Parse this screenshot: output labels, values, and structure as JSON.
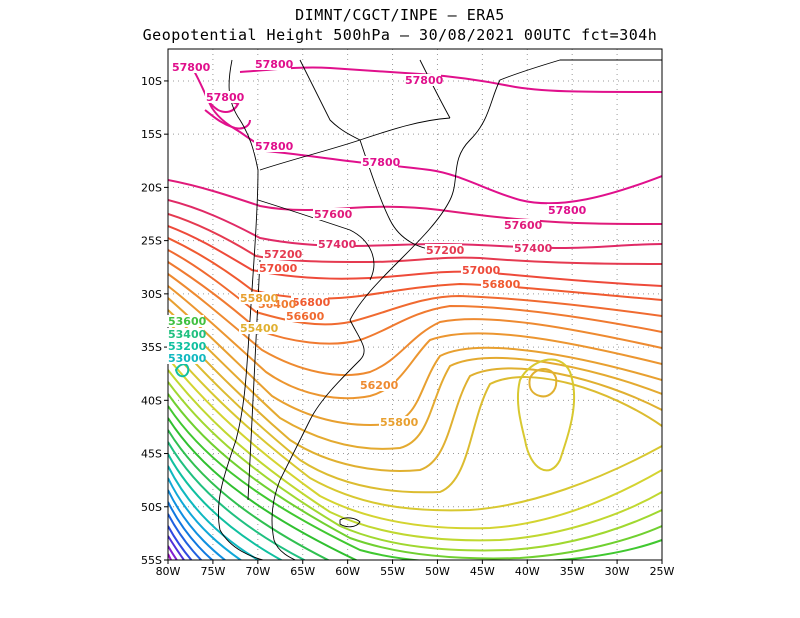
{
  "title": {
    "line1": "DIMNT/CGCT/INPE –  ERA5",
    "line2": "Geopotential Height 500hPa –  30/08/2021 00UTC fct=304h"
  },
  "map": {
    "lon_range": [
      -80,
      -25
    ],
    "lat_range": [
      -55,
      -7
    ],
    "grid": "dotted",
    "x_tick_labels": [
      "80W",
      "75W",
      "70W",
      "65W",
      "60W",
      "55W",
      "50W",
      "45W",
      "40W",
      "35W",
      "30W",
      "25W"
    ],
    "y_tick_labels": [
      "10S",
      "15S",
      "20S",
      "25S",
      "30S",
      "35S",
      "40S",
      "45S",
      "50S",
      "55S"
    ],
    "y_tick_values": [
      -10,
      -15,
      -20,
      -25,
      -30,
      -35,
      -40,
      -45,
      -50,
      -55
    ]
  },
  "contour_labels": [
    {
      "text": "57800",
      "color": "#e0108c"
    },
    {
      "text": "57800",
      "color": "#e0108c"
    },
    {
      "text": "57800",
      "color": "#e0108c"
    },
    {
      "text": "57800",
      "color": "#e0108c"
    },
    {
      "text": "57800",
      "color": "#e0108c"
    },
    {
      "text": "57800",
      "color": "#e0108c"
    },
    {
      "text": "57800",
      "color": "#e0108c"
    },
    {
      "text": "57600",
      "color": "#e01a7a"
    },
    {
      "text": "57600",
      "color": "#e01a7a"
    },
    {
      "text": "57400",
      "color": "#e02a66"
    },
    {
      "text": "57400",
      "color": "#e02a66"
    },
    {
      "text": "57200",
      "color": "#e53a50"
    },
    {
      "text": "57200",
      "color": "#e53a50"
    },
    {
      "text": "57000",
      "color": "#ee4a3a"
    },
    {
      "text": "57000",
      "color": "#ee4a3a"
    },
    {
      "text": "56800",
      "color": "#f05a30"
    },
    {
      "text": "56800",
      "color": "#f05a30"
    },
    {
      "text": "56600",
      "color": "#f06a30"
    },
    {
      "text": "56400",
      "color": "#f07a30"
    },
    {
      "text": "56200",
      "color": "#ee8a30"
    },
    {
      "text": "55800",
      "color": "#e8a030"
    },
    {
      "text": "55800",
      "color": "#e8a030"
    },
    {
      "text": "55400",
      "color": "#e0b030"
    },
    {
      "text": "53600",
      "color": "#40c040"
    },
    {
      "text": "53400",
      "color": "#20c080"
    },
    {
      "text": "53200",
      "color": "#10c0a0"
    },
    {
      "text": "53000",
      "color": "#10b8c0"
    }
  ],
  "colors": {
    "high": "#e0108c",
    "mid": "#f07030",
    "low_mid": "#e0c830",
    "green": "#30c030",
    "cyan": "#10b8c8",
    "blue": "#2040e0",
    "purple": "#9020d0",
    "coast": "#000000"
  }
}
